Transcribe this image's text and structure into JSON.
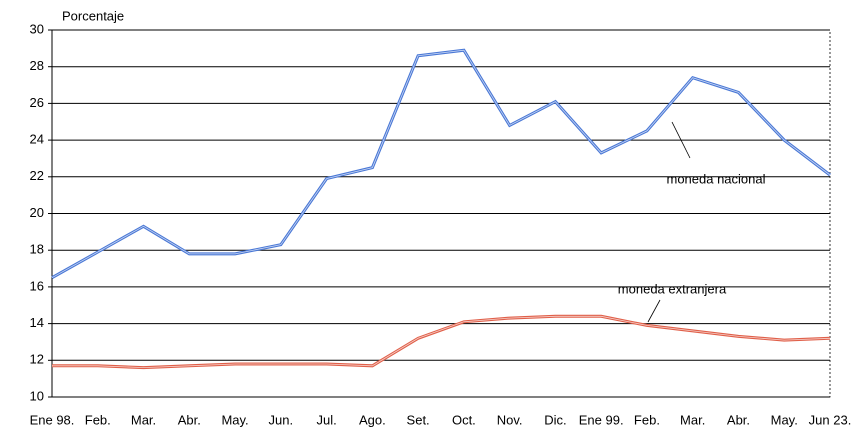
{
  "chart_data": {
    "type": "line",
    "y_label": "Porcentaje",
    "categories": [
      "Ene 98.",
      "Feb.",
      "Mar.",
      "Abr.",
      "May.",
      "Jun.",
      "Jul.",
      "Ago.",
      "Set.",
      "Oct.",
      "Nov.",
      "Dic.",
      "Ene 99.",
      "Feb.",
      "Mar.",
      "Abr.",
      "May.",
      "Jun 23."
    ],
    "series": [
      {
        "name": "moneda nacional",
        "color": "#4a78d6",
        "values": [
          16.5,
          17.9,
          19.3,
          17.8,
          17.8,
          18.3,
          21.9,
          22.5,
          28.6,
          28.9,
          24.8,
          26.1,
          23.3,
          24.5,
          27.4,
          26.6,
          24.0,
          22.1
        ]
      },
      {
        "name": "moneda extranjera",
        "color": "#e0604a",
        "values": [
          11.7,
          11.7,
          11.6,
          11.7,
          11.8,
          11.8,
          11.8,
          11.7,
          13.2,
          14.1,
          14.3,
          14.4,
          14.4,
          13.9,
          13.6,
          13.3,
          13.1,
          13.2
        ]
      }
    ],
    "ylim": [
      10,
      30
    ],
    "yticks": [
      10,
      12,
      14,
      16,
      18,
      20,
      22,
      24,
      26,
      28,
      30
    ],
    "grid": true
  }
}
